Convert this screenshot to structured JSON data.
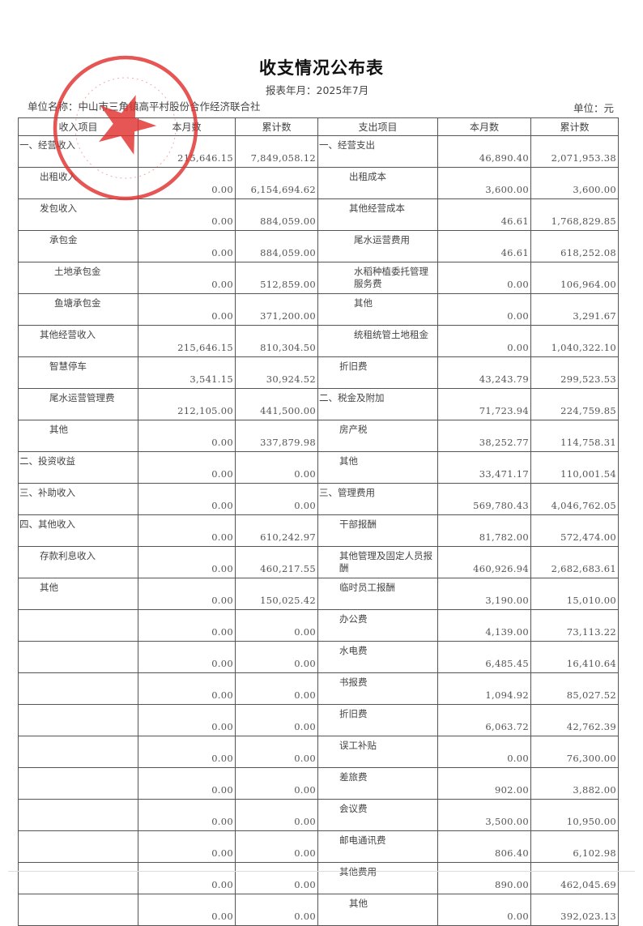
{
  "title": "收支情况公布表",
  "report_period": "报表年月：2025年7月",
  "unit_name": "单位名称：中山市三角镇高平村股份合作经济联合社",
  "currency_unit": "单位：元",
  "stamp": {
    "text": "中山市三角镇高平村股份合作经济联合社",
    "color": "#e0322f"
  },
  "headers": [
    "收入项目",
    "本月数",
    "累计数",
    "支出项目",
    "本月数",
    "累计数"
  ],
  "rows": [
    {
      "income": {
        "label": "一、经营收入",
        "level": 0,
        "month": "215,646.15",
        "total": "7,849,058.12"
      },
      "expense": {
        "label": "一、经营支出",
        "level": 0,
        "month": "46,890.40",
        "total": "2,071,953.38"
      }
    },
    {
      "income": {
        "label": "出租收入",
        "level": 1,
        "month": "0.00",
        "total": "6,154,694.62"
      },
      "expense": {
        "label": "出租成本",
        "level": 2,
        "month": "3,600.00",
        "total": "3,600.00"
      }
    },
    {
      "income": {
        "label": "发包收入",
        "level": 1,
        "month": "0.00",
        "total": "884,059.00"
      },
      "expense": {
        "label": "其他经营成本",
        "level": 2,
        "month": "46.61",
        "total": "1,768,829.85"
      }
    },
    {
      "income": {
        "label": "承包金",
        "level": 2,
        "month": "0.00",
        "total": "884,059.00"
      },
      "expense": {
        "label": "尾水运营费用",
        "level": 3,
        "month": "46.61",
        "total": "618,252.08"
      }
    },
    {
      "income": {
        "label": "土地承包金",
        "level": 3,
        "month": "0.00",
        "total": "512,859.00"
      },
      "expense": {
        "label": "水稻种植委托管理服务费",
        "level": 3,
        "month": "0.00",
        "total": "106,964.00"
      }
    },
    {
      "income": {
        "label": "鱼塘承包金",
        "level": 3,
        "month": "0.00",
        "total": "371,200.00"
      },
      "expense": {
        "label": "其他",
        "level": 3,
        "month": "0.00",
        "total": "3,291.67"
      }
    },
    {
      "income": {
        "label": "其他经营收入",
        "level": 1,
        "month": "215,646.15",
        "total": "810,304.50"
      },
      "expense": {
        "label": "统租统管土地租金",
        "level": 3,
        "month": "0.00",
        "total": "1,040,322.10"
      }
    },
    {
      "income": {
        "label": "智慧停车",
        "level": 2,
        "month": "3,541.15",
        "total": "30,924.52"
      },
      "expense": {
        "label": "折旧费",
        "level": 1,
        "month": "43,243.79",
        "total": "299,523.53"
      }
    },
    {
      "income": {
        "label": "尾水运营管理费",
        "level": 2,
        "month": "212,105.00",
        "total": "441,500.00"
      },
      "expense": {
        "label": "二、税金及附加",
        "level": 0,
        "month": "71,723.94",
        "total": "224,759.85"
      }
    },
    {
      "income": {
        "label": "其他",
        "level": 2,
        "month": "0.00",
        "total": "337,879.98"
      },
      "expense": {
        "label": "房产税",
        "level": 1,
        "month": "38,252.77",
        "total": "114,758.31"
      }
    },
    {
      "income": {
        "label": "二、投资收益",
        "level": 0,
        "month": "0.00",
        "total": "0.00"
      },
      "expense": {
        "label": "其他",
        "level": 1,
        "month": "33,471.17",
        "total": "110,001.54"
      }
    },
    {
      "income": {
        "label": "三、补助收入",
        "level": 0,
        "month": "0.00",
        "total": "0.00"
      },
      "expense": {
        "label": "三、管理费用",
        "level": 0,
        "month": "569,780.43",
        "total": "4,046,762.05"
      }
    },
    {
      "income": {
        "label": "四、其他收入",
        "level": 0,
        "month": "0.00",
        "total": "610,242.97"
      },
      "expense": {
        "label": "干部报酬",
        "level": 1,
        "month": "81,782.00",
        "total": "572,474.00"
      }
    },
    {
      "income": {
        "label": "存款利息收入",
        "level": 1,
        "month": "0.00",
        "total": "460,217.55"
      },
      "expense": {
        "label": "其他管理及固定人员报酬",
        "level": 1,
        "month": "460,926.94",
        "total": "2,682,683.61"
      }
    },
    {
      "income": {
        "label": "其他",
        "level": 1,
        "month": "0.00",
        "total": "150,025.42"
      },
      "expense": {
        "label": "临时员工报酬",
        "level": 1,
        "month": "3,190.00",
        "total": "15,010.00"
      }
    },
    {
      "income": {
        "label": "",
        "level": 0,
        "month": "0.00",
        "total": "0.00"
      },
      "expense": {
        "label": "办公费",
        "level": 1,
        "month": "4,139.00",
        "total": "73,113.22"
      }
    },
    {
      "income": {
        "label": "",
        "level": 0,
        "month": "0.00",
        "total": "0.00"
      },
      "expense": {
        "label": "水电费",
        "level": 1,
        "month": "6,485.45",
        "total": "16,410.64"
      }
    },
    {
      "income": {
        "label": "",
        "level": 0,
        "month": "0.00",
        "total": "0.00"
      },
      "expense": {
        "label": "书报费",
        "level": 1,
        "month": "1,094.92",
        "total": "85,027.52"
      }
    },
    {
      "income": {
        "label": "",
        "level": 0,
        "month": "0.00",
        "total": "0.00"
      },
      "expense": {
        "label": "折旧费",
        "level": 1,
        "month": "6,063.72",
        "total": "42,762.39"
      }
    },
    {
      "income": {
        "label": "",
        "level": 0,
        "month": "0.00",
        "total": "0.00"
      },
      "expense": {
        "label": "误工补贴",
        "level": 1,
        "month": "0.00",
        "total": "76,300.00"
      }
    },
    {
      "income": {
        "label": "",
        "level": 0,
        "month": "0.00",
        "total": "0.00"
      },
      "expense": {
        "label": "差旅费",
        "level": 1,
        "month": "902.00",
        "total": "3,882.00"
      }
    },
    {
      "income": {
        "label": "",
        "level": 0,
        "month": "0.00",
        "total": "0.00"
      },
      "expense": {
        "label": "会议费",
        "level": 1,
        "month": "3,500.00",
        "total": "10,950.00"
      }
    },
    {
      "income": {
        "label": "",
        "level": 0,
        "month": "0.00",
        "total": "0.00"
      },
      "expense": {
        "label": "邮电通讯费",
        "level": 1,
        "month": "806.40",
        "total": "6,102.98"
      }
    },
    {
      "income": {
        "label": "",
        "level": 0,
        "month": "0.00",
        "total": "0.00"
      },
      "expense": {
        "label": "其他费用",
        "level": 1,
        "month": "890.00",
        "total": "462,045.69"
      }
    },
    {
      "income": {
        "label": "",
        "level": 0,
        "month": "0.00",
        "total": "0.00"
      },
      "expense": {
        "label": "其他",
        "level": 2,
        "month": "0.00",
        "total": "392,023.13"
      }
    }
  ]
}
